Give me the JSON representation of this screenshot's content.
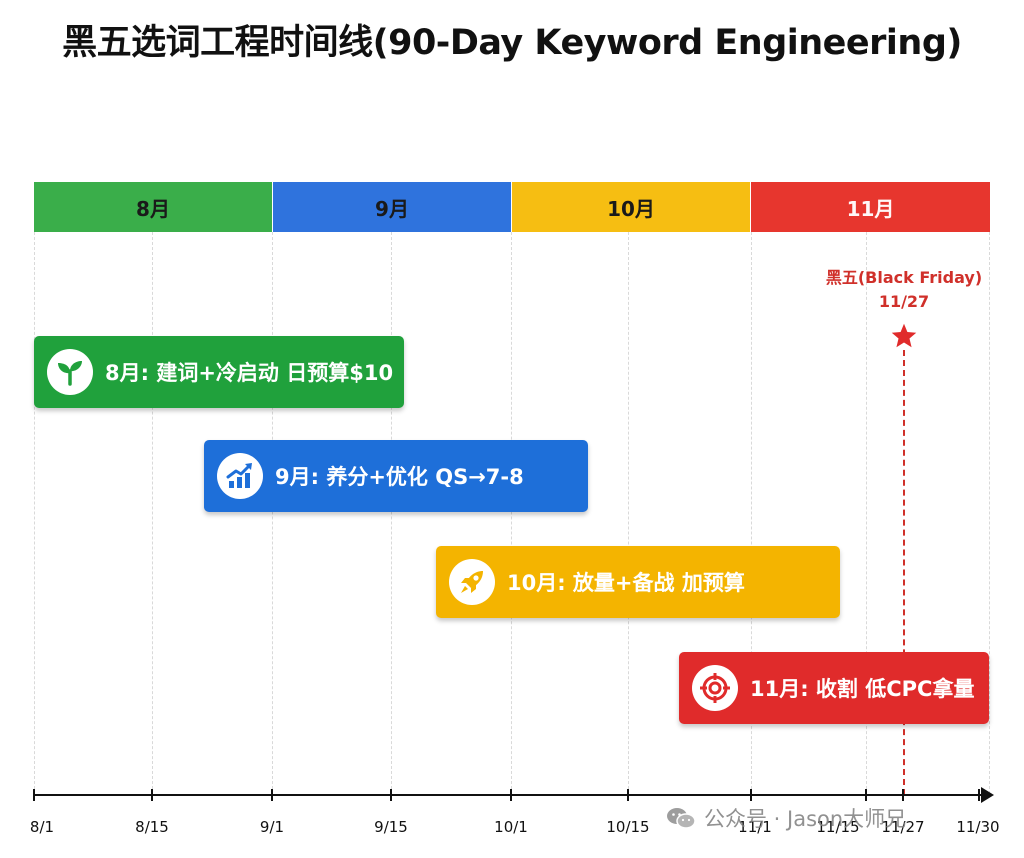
{
  "title": "黑五选词工程时间线(90-Day Keyword Engineering)",
  "months": [
    {
      "label": "8月",
      "color": "#3aae4a"
    },
    {
      "label": "9月",
      "color": "#2f73dd"
    },
    {
      "label": "10月",
      "color": "#f6be12"
    },
    {
      "label": "11月",
      "color": "#e7362e"
    }
  ],
  "phases": [
    {
      "label": "8月: 建词+冷启动 日预算$10",
      "icon": "sprout-icon",
      "color": "#20a13c"
    },
    {
      "label": "9月: 养分+优化 QS→7-8",
      "icon": "growth-chart-icon",
      "color": "#1e6fd9"
    },
    {
      "label": "10月: 放量+备战 加预算",
      "icon": "rocket-icon",
      "color": "#f4b400"
    },
    {
      "label": "11月: 收割 低CPC拿量",
      "icon": "target-icon",
      "color": "#e02b2b"
    }
  ],
  "milestone": {
    "name": "黑五(Black Friday)",
    "date": "11/27",
    "color": "#d0302a",
    "icon": "star-icon"
  },
  "axis_ticks": [
    "8/1",
    "8/15",
    "9/1",
    "9/15",
    "10/1",
    "10/15",
    "11/1",
    "11/15",
    "11/27",
    "11/30"
  ],
  "watermark": "公众号 · Jason大师兄"
}
